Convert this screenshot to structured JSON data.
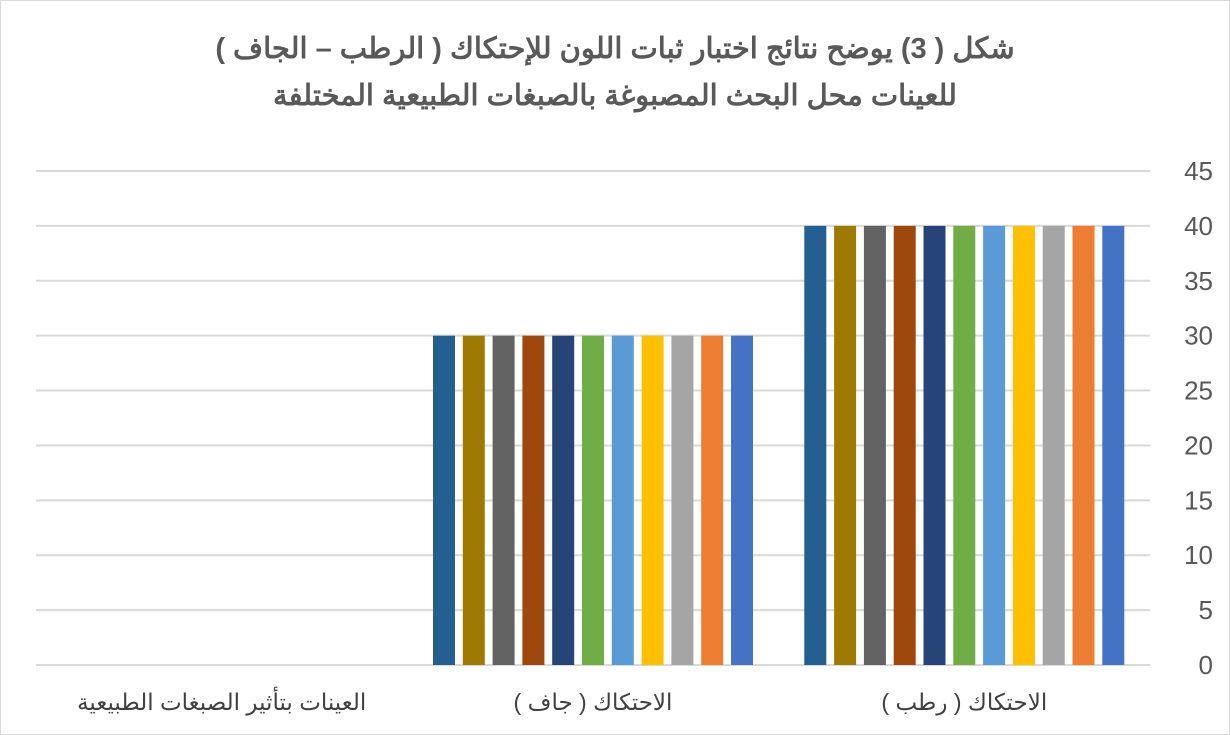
{
  "chart_data": {
    "type": "bar",
    "title_lines": [
      "شكل ( 3) يوضح نتائج اختبار ثبات اللون للإحتكاك  ( الرطب – الجاف )",
      "للعينات محل البحث المصبوغة بالصبغات الطبيعية المختلفة"
    ],
    "categories": [
      "الاحتكاك ( رطب )",
      "الاحتكاك ( جاف )",
      "العينات بتأثير الصبغات الطبيعية"
    ],
    "series": [
      {
        "color": "#255E91",
        "values": [
          40,
          30,
          0
        ]
      },
      {
        "color": "#9E7A00",
        "values": [
          40,
          30,
          0
        ]
      },
      {
        "color": "#636363",
        "values": [
          40,
          30,
          0
        ]
      },
      {
        "color": "#9E480E",
        "values": [
          40,
          30,
          0
        ]
      },
      {
        "color": "#264478",
        "values": [
          40,
          30,
          0
        ]
      },
      {
        "color": "#70AD47",
        "values": [
          40,
          30,
          0
        ]
      },
      {
        "color": "#5B9BD5",
        "values": [
          40,
          30,
          0
        ]
      },
      {
        "color": "#FFC000",
        "values": [
          40,
          30,
          0
        ]
      },
      {
        "color": "#A5A5A5",
        "values": [
          40,
          30,
          0
        ]
      },
      {
        "color": "#ED7D31",
        "values": [
          40,
          30,
          0
        ]
      },
      {
        "color": "#4472C4",
        "values": [
          40,
          30,
          0
        ]
      }
    ],
    "ylim": [
      0,
      45
    ],
    "y_ticks": [
      0,
      5,
      10,
      15,
      20,
      25,
      30,
      35,
      40,
      45
    ],
    "y_axis_side": "right",
    "category_order": "right-to-left",
    "grid": true,
    "legend": "none"
  }
}
